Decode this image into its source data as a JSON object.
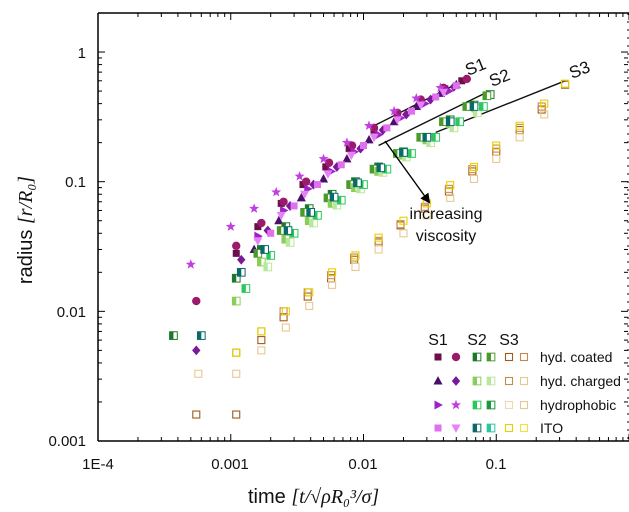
{
  "chart_data": {
    "type": "scatter",
    "title": "",
    "xlabel": "time",
    "ylabel": "radius",
    "xlabel_math": "[t/√ρR₀³/σ]",
    "ylabel_math": "[r/R₀]",
    "xscale": "log",
    "yscale": "log",
    "xlim": [
      0.0001,
      1
    ],
    "ylim": [
      0.001,
      2
    ],
    "xtick_labels": [
      "1E-4",
      "0.001",
      "0.01",
      "0.1"
    ],
    "ytick_labels": [
      "0.001",
      "0.01",
      "0.1",
      "1"
    ],
    "grid": false,
    "legend": {
      "placement": "bottom-right",
      "column_headers": [
        "S1",
        "S2",
        "S3"
      ],
      "rows": [
        "hyd. coated",
        "hyd. charged",
        "hydrophobic",
        "ITO"
      ]
    },
    "annotation": {
      "lines": [
        "increasing",
        "viscosity"
      ]
    },
    "curve_labels": [
      "S1",
      "S2",
      "S3"
    ],
    "series": [
      {
        "group": "S1",
        "marker": "square",
        "color": "#6a0f4a",
        "x": [
          0.0011,
          0.0016,
          0.0024,
          0.0035,
          0.0052,
          0.0078,
          0.012,
          0.018,
          0.027,
          0.041,
          0.055
        ],
        "y": [
          0.028,
          0.045,
          0.068,
          0.095,
          0.13,
          0.18,
          0.25,
          0.33,
          0.42,
          0.52,
          0.6
        ]
      },
      {
        "group": "S1",
        "marker": "circle",
        "color": "#9c1a6a",
        "x": [
          0.00055,
          0.0011,
          0.0017,
          0.0025,
          0.0037,
          0.0055,
          0.0082,
          0.012,
          0.018,
          0.027,
          0.04,
          0.06
        ],
        "y": [
          0.012,
          0.032,
          0.048,
          0.07,
          0.1,
          0.14,
          0.19,
          0.26,
          0.34,
          0.43,
          0.53,
          0.62
        ]
      },
      {
        "group": "S1",
        "marker": "triangle",
        "color": "#4a0f6a",
        "x": [
          0.0015,
          0.0023,
          0.0034,
          0.005,
          0.0075,
          0.011,
          0.017,
          0.025,
          0.038,
          0.05
        ],
        "y": [
          0.03,
          0.05,
          0.075,
          0.105,
          0.15,
          0.21,
          0.29,
          0.38,
          0.48,
          0.56
        ]
      },
      {
        "group": "S1",
        "marker": "diamond",
        "color": "#7a1a9a",
        "x": [
          0.00055,
          0.0012,
          0.0019,
          0.0028,
          0.0042,
          0.0063,
          0.0095,
          0.014,
          0.021,
          0.032,
          0.048
        ],
        "y": [
          0.005,
          0.025,
          0.042,
          0.065,
          0.095,
          0.13,
          0.18,
          0.25,
          0.33,
          0.43,
          0.54
        ]
      },
      {
        "group": "S1",
        "marker": "triangle-right",
        "color": "#a020c8",
        "x": [
          0.0016,
          0.0025,
          0.0038,
          0.0057,
          0.0085,
          0.013,
          0.019,
          0.029,
          0.044
        ],
        "y": [
          0.038,
          0.06,
          0.088,
          0.12,
          0.17,
          0.23,
          0.31,
          0.4,
          0.5
        ]
      },
      {
        "group": "S1",
        "marker": "star",
        "color": "#c040e0",
        "x": [
          0.0005,
          0.001,
          0.0015,
          0.0022,
          0.0033,
          0.005,
          0.0075,
          0.011,
          0.017,
          0.025,
          0.038
        ],
        "y": [
          0.023,
          0.045,
          0.062,
          0.083,
          0.11,
          0.15,
          0.2,
          0.27,
          0.35,
          0.44,
          0.53
        ]
      },
      {
        "group": "S1",
        "marker": "square",
        "color": "#e070f0",
        "x": [
          0.002,
          0.003,
          0.0045,
          0.0068,
          0.01,
          0.015,
          0.023,
          0.035,
          0.05
        ],
        "y": [
          0.04,
          0.065,
          0.095,
          0.135,
          0.19,
          0.26,
          0.35,
          0.45,
          0.55
        ]
      },
      {
        "group": "S1",
        "marker": "triangle-down",
        "color": "#e880f8",
        "x": [
          0.0016,
          0.0024,
          0.0036,
          0.0054,
          0.0081,
          0.012,
          0.018,
          0.027,
          0.04
        ],
        "y": [
          0.035,
          0.055,
          0.08,
          0.115,
          0.16,
          0.22,
          0.3,
          0.39,
          0.49
        ]
      },
      {
        "group": "S2",
        "marker": "half-square",
        "color": "#1a7a2a",
        "x": [
          0.00037,
          0.0011,
          0.0017,
          0.0026,
          0.0039,
          0.0058,
          0.0087,
          0.013,
          0.02,
          0.03,
          0.045,
          0.068,
          0.09
        ],
        "y": [
          0.0065,
          0.018,
          0.03,
          0.045,
          0.062,
          0.08,
          0.1,
          0.13,
          0.17,
          0.22,
          0.3,
          0.39,
          0.47
        ]
      },
      {
        "group": "S2",
        "marker": "half-square",
        "color": "#4a9a2a",
        "x": [
          0.0016,
          0.0024,
          0.0036,
          0.0054,
          0.008,
          0.012,
          0.018,
          0.027,
          0.04,
          0.06,
          0.085
        ],
        "y": [
          0.028,
          0.042,
          0.058,
          0.075,
          0.095,
          0.125,
          0.165,
          0.22,
          0.29,
          0.38,
          0.46
        ]
      },
      {
        "group": "S2",
        "marker": "half-square",
        "color": "#8acd5a",
        "x": [
          0.0011,
          0.0017,
          0.0026,
          0.0039,
          0.0058,
          0.0087,
          0.013,
          0.02,
          0.03,
          0.045,
          0.07
        ],
        "y": [
          0.012,
          0.024,
          0.036,
          0.05,
          0.068,
          0.09,
          0.12,
          0.16,
          0.21,
          0.28,
          0.37
        ]
      },
      {
        "group": "S2",
        "marker": "half-square",
        "color": "#b8e89a",
        "x": [
          0.0019,
          0.0028,
          0.0042,
          0.0063,
          0.0095,
          0.014,
          0.021,
          0.032,
          0.048,
          0.072
        ],
        "y": [
          0.022,
          0.034,
          0.048,
          0.066,
          0.088,
          0.118,
          0.155,
          0.2,
          0.26,
          0.34
        ]
      },
      {
        "group": "S2",
        "marker": "half-square",
        "color": "#2ac85a",
        "x": [
          0.0013,
          0.002,
          0.003,
          0.0045,
          0.0068,
          0.01,
          0.015,
          0.023,
          0.035,
          0.053,
          0.08
        ],
        "y": [
          0.015,
          0.027,
          0.04,
          0.055,
          0.072,
          0.095,
          0.125,
          0.165,
          0.22,
          0.29,
          0.38
        ]
      },
      {
        "group": "S2",
        "marker": "half-square",
        "color": "#0a6a6a",
        "x": [
          0.0006,
          0.0012,
          0.0018,
          0.0027,
          0.004,
          0.006,
          0.009,
          0.0135,
          0.02,
          0.03,
          0.045,
          0.068
        ],
        "y": [
          0.0065,
          0.02,
          0.03,
          0.042,
          0.058,
          0.076,
          0.098,
          0.128,
          0.168,
          0.22,
          0.29,
          0.38
        ]
      },
      {
        "group": "S3",
        "marker": "open-square",
        "color": "#a05a1a",
        "x": [
          0.00055,
          0.0011,
          0.0017,
          0.0025,
          0.0038,
          0.0057,
          0.0085,
          0.013,
          0.019,
          0.029,
          0.044,
          0.066,
          0.1,
          0.15,
          0.22,
          0.33
        ],
        "y": [
          0.0016,
          0.0016,
          0.006,
          0.009,
          0.013,
          0.018,
          0.025,
          0.034,
          0.046,
          0.062,
          0.084,
          0.12,
          0.17,
          0.25,
          0.36,
          0.56
        ]
      },
      {
        "group": "S3",
        "marker": "open-square",
        "color": "#c88a4a",
        "x": [
          0.0011,
          0.0017,
          0.0025,
          0.0038,
          0.0057,
          0.0085,
          0.013,
          0.019,
          0.029,
          0.044,
          0.066,
          0.1,
          0.15,
          0.22
        ],
        "y": [
          0.0048,
          0.007,
          0.01,
          0.014,
          0.019,
          0.026,
          0.035,
          0.047,
          0.064,
          0.088,
          0.125,
          0.18,
          0.26,
          0.38
        ]
      },
      {
        "group": "S3",
        "marker": "open-square",
        "color": "#e8c890",
        "x": [
          0.00057,
          0.0011,
          0.0017,
          0.0026,
          0.0039,
          0.0058,
          0.0087,
          0.013,
          0.02,
          0.03,
          0.045,
          0.068,
          0.1,
          0.15,
          0.23
        ],
        "y": [
          0.0033,
          0.0033,
          0.005,
          0.0075,
          0.011,
          0.016,
          0.022,
          0.03,
          0.04,
          0.055,
          0.075,
          0.105,
          0.15,
          0.22,
          0.33
        ]
      },
      {
        "group": "S3",
        "marker": "open-square",
        "color": "#e8d000",
        "x": [
          0.0011,
          0.0017,
          0.0026,
          0.0039,
          0.0058,
          0.0087,
          0.013,
          0.02,
          0.03,
          0.045,
          0.068,
          0.1,
          0.15,
          0.23,
          0.33
        ],
        "y": [
          0.0048,
          0.007,
          0.01,
          0.014,
          0.02,
          0.027,
          0.037,
          0.05,
          0.068,
          0.094,
          0.13,
          0.19,
          0.27,
          0.4,
          0.57
        ]
      }
    ],
    "fit_lines": [
      {
        "group": "S1",
        "x": [
          0.012,
          0.06
        ],
        "y": [
          0.27,
          0.62
        ]
      },
      {
        "group": "S2",
        "x": [
          0.013,
          0.085
        ],
        "y": [
          0.19,
          0.49
        ]
      },
      {
        "group": "S3",
        "x": [
          0.035,
          0.33
        ],
        "y": [
          0.24,
          0.6
        ]
      }
    ]
  },
  "legend_colors": {
    "hyd. coated": [
      "#6a0f4a",
      "#9c1a6a",
      "#1a7a2a",
      "#4a9a2a",
      "#a05a1a",
      "#c88a4a"
    ],
    "hyd. charged": [
      "#4a0f6a",
      "#7a1a9a",
      "#8acd5a",
      "#b8e89a",
      "#c88a4a",
      "#e8c890"
    ],
    "hydrophobic": [
      "#a020c8",
      "#c040e0",
      "#2ac85a",
      "#1a9a3a",
      "#f0d8b0",
      "#e8c890"
    ],
    "ITO": [
      "#e070f0",
      "#e880f8",
      "#0a6a6a",
      "#2ac8a0",
      "#e8d000",
      "#f0e040"
    ]
  }
}
